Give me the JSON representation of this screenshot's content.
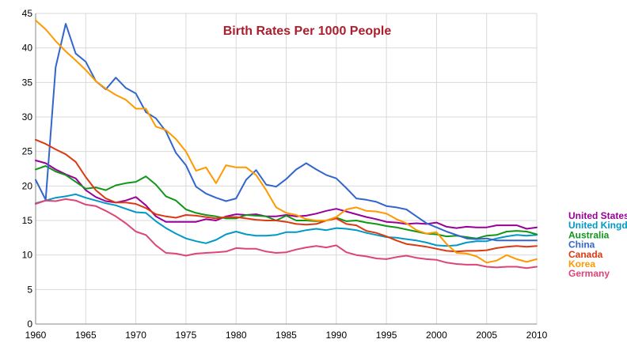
{
  "chart_data": {
    "type": "line",
    "title": "Birth Rates Per 1000 People",
    "title_color": "#aa1f2e",
    "xlabel": "",
    "ylabel": "",
    "xlim": [
      1960,
      2010
    ],
    "ylim": [
      0,
      45
    ],
    "x_ticks": [
      1960,
      1965,
      1970,
      1975,
      1980,
      1985,
      1990,
      1995,
      2000,
      2005,
      2010
    ],
    "y_ticks": [
      0,
      5,
      10,
      15,
      20,
      25,
      30,
      35,
      40,
      45
    ],
    "grid": true,
    "legend_position": "right",
    "x": [
      1960,
      1961,
      1962,
      1963,
      1964,
      1965,
      1966,
      1967,
      1968,
      1969,
      1970,
      1971,
      1972,
      1973,
      1974,
      1975,
      1976,
      1977,
      1978,
      1979,
      1980,
      1981,
      1982,
      1983,
      1984,
      1985,
      1986,
      1987,
      1988,
      1989,
      1990,
      1991,
      1992,
      1993,
      1994,
      1995,
      1996,
      1997,
      1998,
      1999,
      2000,
      2001,
      2002,
      2003,
      2004,
      2005,
      2006,
      2007,
      2008,
      2009,
      2010
    ],
    "series": [
      {
        "name": "United States",
        "color": "#990099",
        "values": [
          23.7,
          23.3,
          22.4,
          21.7,
          21.1,
          19.4,
          18.4,
          17.8,
          17.6,
          17.9,
          18.4,
          17.2,
          15.6,
          14.8,
          14.8,
          14.8,
          14.8,
          15.2,
          15.0,
          15.6,
          15.9,
          15.8,
          15.9,
          15.6,
          15.6,
          15.8,
          15.6,
          15.7,
          16.0,
          16.4,
          16.7,
          16.3,
          15.9,
          15.5,
          15.2,
          14.8,
          14.7,
          14.5,
          14.6,
          14.5,
          14.7,
          14.1,
          13.9,
          14.1,
          14.0,
          14.0,
          14.3,
          14.3,
          14.3,
          13.8,
          14.0
        ]
      },
      {
        "name": "United Kingdom",
        "color": "#0099c6",
        "values": [
          17.5,
          17.9,
          18.3,
          18.5,
          18.8,
          18.3,
          17.9,
          17.5,
          17.2,
          16.7,
          16.2,
          16.1,
          14.9,
          13.9,
          13.1,
          12.4,
          12.0,
          11.7,
          12.2,
          13.0,
          13.4,
          13.0,
          12.8,
          12.8,
          12.9,
          13.3,
          13.3,
          13.6,
          13.8,
          13.6,
          13.9,
          13.8,
          13.6,
          13.2,
          12.9,
          12.6,
          12.5,
          12.3,
          12.1,
          11.8,
          11.4,
          11.3,
          11.4,
          11.8,
          12.0,
          12.0,
          12.4,
          12.7,
          12.9,
          12.8,
          12.9
        ]
      },
      {
        "name": "Australia",
        "color": "#109618",
        "values": [
          22.4,
          22.9,
          22.1,
          21.6,
          20.6,
          19.6,
          19.8,
          19.4,
          20.1,
          20.4,
          20.6,
          21.4,
          20.2,
          18.5,
          17.9,
          16.6,
          16.1,
          15.8,
          15.6,
          15.3,
          15.3,
          15.8,
          15.7,
          15.6,
          15.0,
          15.7,
          15.0,
          15.0,
          14.9,
          15.0,
          15.4,
          14.9,
          15.0,
          14.7,
          14.5,
          14.2,
          14.0,
          13.7,
          13.4,
          13.1,
          13.0,
          12.7,
          12.8,
          12.6,
          12.4,
          12.8,
          12.9,
          13.4,
          13.5,
          13.4,
          13.0
        ]
      },
      {
        "name": "China",
        "color": "#3366cc",
        "values": [
          20.9,
          18.0,
          37.2,
          43.5,
          39.2,
          38.0,
          35.2,
          34.0,
          35.7,
          34.2,
          33.4,
          30.7,
          29.8,
          27.9,
          24.8,
          23.0,
          19.9,
          18.9,
          18.3,
          17.8,
          18.2,
          20.9,
          22.3,
          20.2,
          19.9,
          21.0,
          22.4,
          23.3,
          22.4,
          21.6,
          21.1,
          19.7,
          18.2,
          18.0,
          17.7,
          17.1,
          16.9,
          16.6,
          15.6,
          14.6,
          14.0,
          13.4,
          12.9,
          12.4,
          12.3,
          12.4,
          12.1,
          12.1,
          12.1,
          12.1,
          12.1
        ]
      },
      {
        "name": "Canada",
        "color": "#dc3912",
        "values": [
          26.7,
          26.1,
          25.3,
          24.6,
          23.5,
          21.3,
          19.4,
          18.2,
          17.6,
          17.6,
          17.4,
          16.8,
          15.9,
          15.6,
          15.4,
          15.8,
          15.7,
          15.5,
          15.3,
          15.5,
          15.5,
          15.3,
          15.1,
          15.0,
          15.0,
          14.8,
          14.5,
          14.4,
          14.5,
          15.0,
          15.3,
          14.5,
          14.3,
          13.5,
          13.2,
          12.7,
          12.1,
          11.6,
          11.4,
          11.2,
          10.9,
          10.6,
          10.5,
          10.6,
          10.6,
          10.7,
          11.0,
          11.2,
          11.3,
          11.2,
          11.3
        ]
      },
      {
        "name": "Korea",
        "color": "#ff9900",
        "values": [
          44.0,
          42.7,
          41.0,
          39.5,
          38.2,
          36.8,
          35.2,
          34.1,
          33.2,
          32.5,
          31.2,
          31.2,
          28.6,
          28.1,
          26.8,
          25.0,
          22.2,
          22.7,
          20.4,
          23.0,
          22.7,
          22.7,
          21.6,
          19.4,
          16.9,
          16.1,
          15.8,
          15.2,
          15.0,
          15.0,
          15.5,
          16.6,
          16.9,
          16.4,
          16.3,
          16.0,
          15.2,
          14.6,
          13.6,
          13.1,
          13.3,
          11.6,
          10.3,
          10.2,
          9.8,
          8.9,
          9.2,
          10.0,
          9.4,
          9.0,
          9.4
        ]
      },
      {
        "name": "Germany",
        "color": "#dd4477",
        "values": [
          17.4,
          17.9,
          17.8,
          18.1,
          17.9,
          17.3,
          17.1,
          16.4,
          15.6,
          14.6,
          13.4,
          12.9,
          11.4,
          10.3,
          10.2,
          9.9,
          10.2,
          10.3,
          10.4,
          10.5,
          11.0,
          10.9,
          10.9,
          10.5,
          10.3,
          10.4,
          10.8,
          11.1,
          11.3,
          11.1,
          11.4,
          10.4,
          10.0,
          9.8,
          9.5,
          9.4,
          9.7,
          9.9,
          9.6,
          9.4,
          9.3,
          8.9,
          8.7,
          8.6,
          8.6,
          8.3,
          8.2,
          8.3,
          8.3,
          8.1,
          8.3
        ]
      }
    ]
  }
}
